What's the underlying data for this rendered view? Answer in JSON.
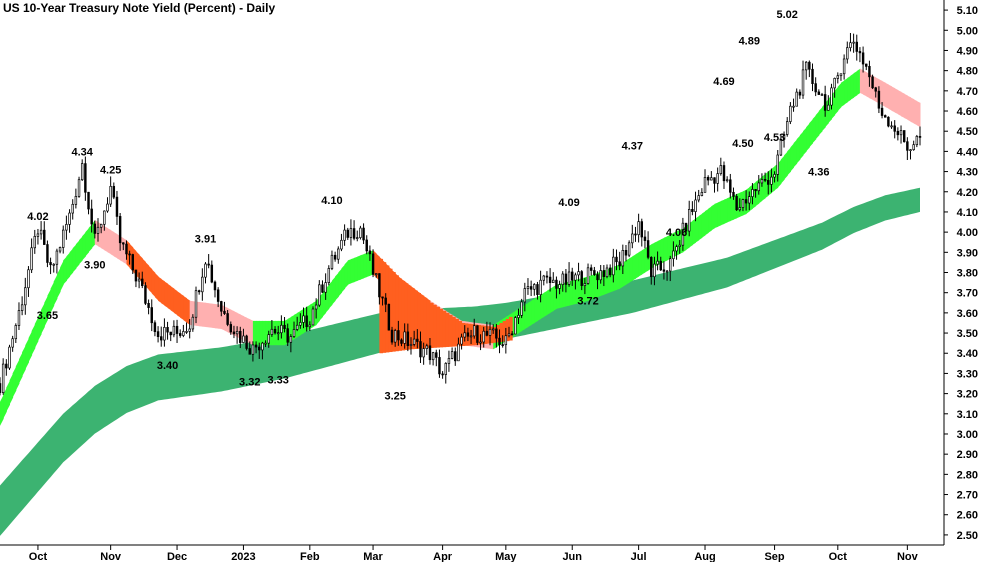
{
  "chart_data": {
    "type": "candlestick",
    "title": "US 10-Year Treasury Note Yield (Percent) - Daily",
    "xlabel": "",
    "ylabel": "",
    "ylim": [
      2.45,
      5.15
    ],
    "y_ticks": [
      2.5,
      2.6,
      2.7,
      2.8,
      2.9,
      3.0,
      3.1,
      3.2,
      3.3,
      3.4,
      3.5,
      3.6,
      3.7,
      3.8,
      3.9,
      4.0,
      4.1,
      4.2,
      4.3,
      4.4,
      4.5,
      4.6,
      4.7,
      4.8,
      4.9,
      5.0,
      5.1
    ],
    "y_tick_labels": [
      "2.50",
      "2.60",
      "2.70",
      "2.80",
      "2.90",
      "3.00",
      "3.10",
      "3.20",
      "3.30",
      "3.40",
      "3.50",
      "3.60",
      "3.70",
      "3.80",
      "3.90",
      "4.00",
      "4.10",
      "4.20",
      "4.30",
      "4.40",
      "4.50",
      "4.60",
      "4.70",
      "4.80",
      "4.90",
      "5.00",
      "5.10"
    ],
    "x_range": [
      0,
      291
    ],
    "x_ticks": [
      {
        "label": "Oct",
        "x": 12
      },
      {
        "label": "Nov",
        "x": 35
      },
      {
        "label": "Dec",
        "x": 56
      },
      {
        "label": "2023",
        "x": 77
      },
      {
        "label": "Feb",
        "x": 98
      },
      {
        "label": "Mar",
        "x": 118
      },
      {
        "label": "Apr",
        "x": 140
      },
      {
        "label": "May",
        "x": 160
      },
      {
        "label": "Jun",
        "x": 181
      },
      {
        "label": "Jul",
        "x": 202
      },
      {
        "label": "Aug",
        "x": 223
      },
      {
        "label": "Sep",
        "x": 245
      },
      {
        "label": "Oct",
        "x": 265
      },
      {
        "label": "Nov",
        "x": 287
      }
    ],
    "price_path": [
      [
        0,
        3.25
      ],
      [
        6,
        3.6
      ],
      [
        12,
        4.02
      ],
      [
        16,
        3.8
      ],
      [
        22,
        4.08
      ],
      [
        26,
        4.34
      ],
      [
        30,
        3.95
      ],
      [
        35,
        4.22
      ],
      [
        38,
        3.95
      ],
      [
        44,
        3.75
      ],
      [
        50,
        3.5
      ],
      [
        56,
        3.5
      ],
      [
        60,
        3.55
      ],
      [
        65,
        3.88
      ],
      [
        70,
        3.62
      ],
      [
        75,
        3.5
      ],
      [
        80,
        3.42
      ],
      [
        86,
        3.52
      ],
      [
        92,
        3.48
      ],
      [
        98,
        3.58
      ],
      [
        104,
        3.82
      ],
      [
        110,
        4.0
      ],
      [
        114,
        4.02
      ],
      [
        118,
        3.8
      ],
      [
        124,
        3.5
      ],
      [
        130,
        3.45
      ],
      [
        136,
        3.4
      ],
      [
        140,
        3.3
      ],
      [
        146,
        3.45
      ],
      [
        150,
        3.5
      ],
      [
        156,
        3.48
      ],
      [
        160,
        3.45
      ],
      [
        166,
        3.7
      ],
      [
        172,
        3.75
      ],
      [
        178,
        3.75
      ],
      [
        184,
        3.78
      ],
      [
        190,
        3.8
      ],
      [
        196,
        3.85
      ],
      [
        202,
        4.05
      ],
      [
        206,
        3.8
      ],
      [
        212,
        3.84
      ],
      [
        218,
        4.08
      ],
      [
        223,
        4.25
      ],
      [
        228,
        4.3
      ],
      [
        233,
        4.12
      ],
      [
        238,
        4.2
      ],
      [
        245,
        4.3
      ],
      [
        250,
        4.6
      ],
      [
        255,
        4.8
      ],
      [
        262,
        4.62
      ],
      [
        267,
        4.88
      ],
      [
        270,
        4.95
      ],
      [
        274,
        4.82
      ],
      [
        278,
        4.62
      ],
      [
        283,
        4.52
      ],
      [
        287,
        4.42
      ],
      [
        291,
        4.47
      ]
    ],
    "ema_fast": [
      [
        0,
        3.1
      ],
      [
        10,
        3.45
      ],
      [
        20,
        3.8
      ],
      [
        30,
        4.0
      ],
      [
        40,
        3.9
      ],
      [
        50,
        3.72
      ],
      [
        60,
        3.6
      ],
      [
        70,
        3.58
      ],
      [
        80,
        3.5
      ],
      [
        90,
        3.5
      ],
      [
        100,
        3.6
      ],
      [
        110,
        3.8
      ],
      [
        118,
        3.85
      ],
      [
        126,
        3.72
      ],
      [
        136,
        3.6
      ],
      [
        146,
        3.5
      ],
      [
        156,
        3.48
      ],
      [
        166,
        3.58
      ],
      [
        176,
        3.68
      ],
      [
        186,
        3.72
      ],
      [
        196,
        3.78
      ],
      [
        206,
        3.88
      ],
      [
        216,
        3.96
      ],
      [
        226,
        4.08
      ],
      [
        236,
        4.15
      ],
      [
        246,
        4.28
      ],
      [
        256,
        4.48
      ],
      [
        266,
        4.68
      ],
      [
        272,
        4.75
      ],
      [
        280,
        4.68
      ],
      [
        291,
        4.58
      ]
    ],
    "ema_slow": [
      [
        0,
        2.62
      ],
      [
        10,
        2.8
      ],
      [
        20,
        2.98
      ],
      [
        30,
        3.12
      ],
      [
        40,
        3.22
      ],
      [
        50,
        3.28
      ],
      [
        60,
        3.3
      ],
      [
        70,
        3.32
      ],
      [
        80,
        3.35
      ],
      [
        90,
        3.38
      ],
      [
        100,
        3.42
      ],
      [
        110,
        3.46
      ],
      [
        120,
        3.5
      ],
      [
        130,
        3.52
      ],
      [
        140,
        3.53
      ],
      [
        150,
        3.54
      ],
      [
        160,
        3.56
      ],
      [
        170,
        3.59
      ],
      [
        180,
        3.62
      ],
      [
        190,
        3.65
      ],
      [
        200,
        3.68
      ],
      [
        210,
        3.72
      ],
      [
        220,
        3.76
      ],
      [
        230,
        3.8
      ],
      [
        240,
        3.86
      ],
      [
        250,
        3.92
      ],
      [
        260,
        3.98
      ],
      [
        270,
        4.06
      ],
      [
        280,
        4.12
      ],
      [
        291,
        4.16
      ]
    ],
    "annotations": [
      {
        "label": "4.02",
        "x": 12,
        "y": 4.02,
        "pos": "above"
      },
      {
        "label": "3.65",
        "x": 15,
        "y": 3.65,
        "pos": "below"
      },
      {
        "label": "4.34",
        "x": 26,
        "y": 4.34,
        "pos": "above"
      },
      {
        "label": "3.90",
        "x": 30,
        "y": 3.9,
        "pos": "below"
      },
      {
        "label": "4.25",
        "x": 35,
        "y": 4.25,
        "pos": "above"
      },
      {
        "label": "3.40",
        "x": 53,
        "y": 3.4,
        "pos": "below"
      },
      {
        "label": "3.91",
        "x": 65,
        "y": 3.91,
        "pos": "above"
      },
      {
        "label": "3.32",
        "x": 79,
        "y": 3.32,
        "pos": "below"
      },
      {
        "label": "3.33",
        "x": 88,
        "y": 3.33,
        "pos": "below"
      },
      {
        "label": "4.10",
        "x": 105,
        "y": 4.1,
        "pos": "above"
      },
      {
        "label": "3.25",
        "x": 125,
        "y": 3.25,
        "pos": "below"
      },
      {
        "label": "4.09",
        "x": 180,
        "y": 4.09,
        "pos": "above"
      },
      {
        "label": "3.72",
        "x": 186,
        "y": 3.72,
        "pos": "below"
      },
      {
        "label": "4.37",
        "x": 200,
        "y": 4.37,
        "pos": "above"
      },
      {
        "label": "4.06",
        "x": 214,
        "y": 4.06,
        "pos": "below"
      },
      {
        "label": "4.69",
        "x": 229,
        "y": 4.69,
        "pos": "above"
      },
      {
        "label": "4.50",
        "x": 235,
        "y": 4.5,
        "pos": "below"
      },
      {
        "label": "4.89",
        "x": 237,
        "y": 4.89,
        "pos": "above"
      },
      {
        "label": "4.53",
        "x": 245,
        "y": 4.53,
        "pos": "below"
      },
      {
        "label": "5.02",
        "x": 249,
        "y": 5.02,
        "pos": "above"
      },
      {
        "label": "4.36",
        "x": 259,
        "y": 4.36,
        "pos": "below"
      }
    ],
    "colors": {
      "bull_band": "#33ff33",
      "bear_band": "#ff5f1f",
      "fast_bear_light": "#ffb0b0",
      "slow_band": "#3cb371",
      "candle_up": "#ffffff",
      "candle_down": "#000000"
    },
    "grid": false,
    "legend": "none"
  }
}
